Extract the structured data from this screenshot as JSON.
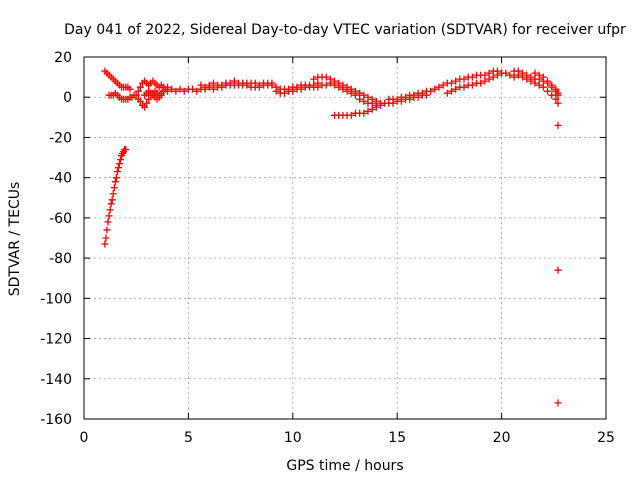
{
  "chart_data": {
    "type": "scatter",
    "title": "Day 041 of 2022, Sidereal Day-to-day VTEC variation (SDTVAR) for receiver ufpr",
    "xlabel": "GPS time / hours",
    "ylabel": "SDTVAR / TECUs",
    "xlim": [
      0,
      25
    ],
    "ylim": [
      -160,
      20
    ],
    "xticks": [
      0,
      5,
      10,
      15,
      20,
      25
    ],
    "yticks": [
      -160,
      -140,
      -120,
      -100,
      -80,
      -60,
      -40,
      -20,
      0,
      20
    ],
    "grid": true,
    "marker": "plus",
    "color": "#ff0000",
    "series": [
      {
        "values": [
          [
            1.0,
            -73
          ],
          [
            1.05,
            -70
          ],
          [
            1.1,
            -66
          ],
          [
            1.15,
            -62
          ],
          [
            1.2,
            -59
          ],
          [
            1.25,
            -56
          ],
          [
            1.3,
            -53
          ],
          [
            1.35,
            -51
          ],
          [
            1.4,
            -48
          ],
          [
            1.45,
            -45
          ],
          [
            1.5,
            -42
          ],
          [
            1.55,
            -40
          ],
          [
            1.6,
            -37
          ],
          [
            1.65,
            -35
          ],
          [
            1.7,
            -33
          ],
          [
            1.75,
            -31
          ],
          [
            1.8,
            -29
          ],
          [
            1.85,
            -28
          ],
          [
            1.9,
            -27
          ],
          [
            1.95,
            -26
          ],
          [
            2.0,
            -26
          ],
          [
            1.0,
            13
          ],
          [
            1.1,
            12
          ],
          [
            1.2,
            11
          ],
          [
            1.3,
            10
          ],
          [
            1.4,
            9
          ],
          [
            1.5,
            8
          ],
          [
            1.6,
            7
          ],
          [
            1.7,
            6
          ],
          [
            1.8,
            5
          ],
          [
            1.9,
            5
          ],
          [
            2.0,
            5
          ],
          [
            2.1,
            5
          ],
          [
            2.2,
            4
          ],
          [
            1.2,
            1
          ],
          [
            1.3,
            1
          ],
          [
            1.4,
            1
          ],
          [
            1.5,
            2
          ],
          [
            1.6,
            1
          ],
          [
            1.7,
            0
          ],
          [
            1.8,
            -1
          ],
          [
            1.9,
            -1
          ],
          [
            2.0,
            -1
          ],
          [
            2.1,
            -1
          ],
          [
            2.2,
            0
          ],
          [
            2.3,
            0
          ],
          [
            2.4,
            1
          ],
          [
            2.5,
            1
          ],
          [
            2.6,
            3
          ],
          [
            2.7,
            5
          ],
          [
            2.8,
            7
          ],
          [
            2.9,
            8
          ],
          [
            3.0,
            7
          ],
          [
            3.1,
            6
          ],
          [
            3.2,
            7
          ],
          [
            3.3,
            8
          ],
          [
            3.4,
            7
          ],
          [
            3.5,
            6
          ],
          [
            3.6,
            5
          ],
          [
            3.7,
            6
          ],
          [
            3.8,
            5
          ],
          [
            3.9,
            4
          ],
          [
            4.0,
            5
          ],
          [
            2.6,
            -1
          ],
          [
            2.7,
            -2
          ],
          [
            2.8,
            -4
          ],
          [
            2.9,
            -5
          ],
          [
            3.0,
            -3
          ],
          [
            3.1,
            -1
          ],
          [
            3.2,
            1
          ],
          [
            3.3,
            2
          ],
          [
            3.4,
            3
          ],
          [
            3.5,
            2
          ],
          [
            3.6,
            1
          ],
          [
            3.7,
            2
          ],
          [
            3.8,
            3
          ],
          [
            2.9,
            1
          ],
          [
            3.0,
            2
          ],
          [
            3.1,
            3
          ],
          [
            3.2,
            2
          ],
          [
            3.3,
            1
          ],
          [
            3.4,
            0
          ],
          [
            3.5,
            -1
          ],
          [
            3.6,
            0
          ],
          [
            3.7,
            1
          ],
          [
            4.0,
            3
          ],
          [
            4.2,
            4
          ],
          [
            4.4,
            3
          ],
          [
            4.6,
            4
          ],
          [
            4.8,
            3
          ],
          [
            5.0,
            4
          ],
          [
            5.2,
            4
          ],
          [
            5.4,
            3
          ],
          [
            5.6,
            4
          ],
          [
            5.8,
            4
          ],
          [
            6.0,
            5
          ],
          [
            6.2,
            4
          ],
          [
            6.4,
            5
          ],
          [
            6.6,
            5
          ],
          [
            6.8,
            6
          ],
          [
            7.0,
            6
          ],
          [
            7.2,
            6
          ],
          [
            7.4,
            6
          ],
          [
            7.6,
            6
          ],
          [
            7.8,
            6
          ],
          [
            8.0,
            5
          ],
          [
            8.2,
            5
          ],
          [
            8.4,
            5
          ],
          [
            8.6,
            6
          ],
          [
            8.8,
            6
          ],
          [
            9.0,
            6
          ],
          [
            5.6,
            6
          ],
          [
            5.8,
            5
          ],
          [
            6.0,
            6
          ],
          [
            6.2,
            7
          ],
          [
            6.4,
            6
          ],
          [
            6.6,
            6
          ],
          [
            6.8,
            7
          ],
          [
            7.0,
            7
          ],
          [
            7.2,
            8
          ],
          [
            7.4,
            7
          ],
          [
            7.6,
            7
          ],
          [
            7.8,
            7
          ],
          [
            8.0,
            7
          ],
          [
            8.2,
            7
          ],
          [
            8.4,
            6
          ],
          [
            8.6,
            7
          ],
          [
            8.8,
            7
          ],
          [
            9.0,
            7
          ],
          [
            9.2,
            3
          ],
          [
            9.4,
            2
          ],
          [
            9.6,
            2
          ],
          [
            9.8,
            3
          ],
          [
            10.0,
            3
          ],
          [
            10.2,
            4
          ],
          [
            10.4,
            4
          ],
          [
            10.6,
            5
          ],
          [
            10.8,
            5
          ],
          [
            11.0,
            5
          ],
          [
            11.2,
            5
          ],
          [
            11.4,
            6
          ],
          [
            11.6,
            6
          ],
          [
            9.2,
            5
          ],
          [
            9.4,
            4
          ],
          [
            9.6,
            4
          ],
          [
            9.8,
            4
          ],
          [
            10.0,
            5
          ],
          [
            10.2,
            5
          ],
          [
            10.4,
            6
          ],
          [
            10.6,
            6
          ],
          [
            10.8,
            6
          ],
          [
            11.0,
            6
          ],
          [
            11.2,
            7
          ],
          [
            11.0,
            9
          ],
          [
            11.2,
            10
          ],
          [
            11.4,
            10
          ],
          [
            11.6,
            10
          ],
          [
            11.8,
            9
          ],
          [
            12.0,
            8
          ],
          [
            12.2,
            7
          ],
          [
            12.4,
            6
          ],
          [
            12.6,
            5
          ],
          [
            12.8,
            4
          ],
          [
            13.0,
            3
          ],
          [
            13.2,
            2
          ],
          [
            13.4,
            1
          ],
          [
            13.6,
            0
          ],
          [
            13.8,
            -1
          ],
          [
            14.0,
            -2
          ],
          [
            14.2,
            -3
          ],
          [
            11.8,
            7
          ],
          [
            12.0,
            6
          ],
          [
            12.2,
            5
          ],
          [
            12.4,
            4
          ],
          [
            12.6,
            3
          ],
          [
            12.8,
            2
          ],
          [
            13.0,
            1
          ],
          [
            13.2,
            -1
          ],
          [
            13.4,
            -2
          ],
          [
            13.6,
            -3
          ],
          [
            13.8,
            -3
          ],
          [
            14.0,
            -4
          ],
          [
            12.0,
            -9
          ],
          [
            12.2,
            -9
          ],
          [
            12.4,
            -9
          ],
          [
            12.6,
            -9
          ],
          [
            12.8,
            -9
          ],
          [
            13.0,
            -8
          ],
          [
            13.2,
            -8
          ],
          [
            13.4,
            -8
          ],
          [
            13.6,
            -7
          ],
          [
            13.8,
            -6
          ],
          [
            14.0,
            -5
          ],
          [
            14.2,
            -4
          ],
          [
            14.4,
            -3
          ],
          [
            14.6,
            -3
          ],
          [
            14.8,
            -3
          ],
          [
            15.0,
            -2
          ],
          [
            15.2,
            -2
          ],
          [
            15.4,
            -1
          ],
          [
            15.6,
            -1
          ],
          [
            15.8,
            0
          ],
          [
            16.0,
            0
          ],
          [
            16.2,
            1
          ],
          [
            16.4,
            1
          ],
          [
            14.6,
            -1
          ],
          [
            14.8,
            -1
          ],
          [
            15.0,
            -1
          ],
          [
            15.2,
            0
          ],
          [
            15.4,
            0
          ],
          [
            15.6,
            1
          ],
          [
            15.8,
            1
          ],
          [
            16.0,
            2
          ],
          [
            16.2,
            2
          ],
          [
            16.4,
            3
          ],
          [
            16.6,
            3
          ],
          [
            16.8,
            4
          ],
          [
            17.0,
            5
          ],
          [
            17.2,
            6
          ],
          [
            17.4,
            7
          ],
          [
            17.6,
            7
          ],
          [
            17.8,
            8
          ],
          [
            18.0,
            9
          ],
          [
            18.2,
            9
          ],
          [
            18.4,
            10
          ],
          [
            18.6,
            10
          ],
          [
            18.8,
            11
          ],
          [
            19.0,
            11
          ],
          [
            17.4,
            2
          ],
          [
            17.6,
            3
          ],
          [
            17.8,
            4
          ],
          [
            18.0,
            5
          ],
          [
            18.2,
            5
          ],
          [
            18.4,
            6
          ],
          [
            18.6,
            6
          ],
          [
            18.8,
            7
          ],
          [
            19.0,
            7
          ],
          [
            19.2,
            8
          ],
          [
            19.4,
            9
          ],
          [
            19.6,
            10
          ],
          [
            19.8,
            11
          ],
          [
            20.0,
            12
          ],
          [
            19.2,
            11
          ],
          [
            19.4,
            12
          ],
          [
            19.6,
            13
          ],
          [
            19.8,
            13
          ],
          [
            20.0,
            12
          ],
          [
            20.2,
            12
          ],
          [
            20.4,
            11
          ],
          [
            20.6,
            10
          ],
          [
            20.6,
            13
          ],
          [
            20.8,
            13
          ],
          [
            21.0,
            12
          ],
          [
            21.2,
            11
          ],
          [
            21.4,
            10
          ],
          [
            21.6,
            9
          ],
          [
            21.8,
            9
          ],
          [
            22.0,
            8
          ],
          [
            22.2,
            7
          ],
          [
            22.4,
            5
          ],
          [
            22.6,
            3
          ],
          [
            22.7,
            1
          ],
          [
            20.8,
            11
          ],
          [
            21.0,
            10
          ],
          [
            21.2,
            9
          ],
          [
            21.4,
            8
          ],
          [
            21.6,
            7
          ],
          [
            21.8,
            6
          ],
          [
            22.0,
            5
          ],
          [
            22.2,
            3
          ],
          [
            22.4,
            1
          ],
          [
            22.6,
            -1
          ],
          [
            22.7,
            -3
          ],
          [
            21.6,
            12
          ],
          [
            21.8,
            11
          ],
          [
            22.0,
            10
          ],
          [
            22.2,
            8
          ],
          [
            22.4,
            6
          ],
          [
            22.6,
            4
          ],
          [
            22.7,
            2
          ],
          [
            22.7,
            -14
          ],
          [
            22.7,
            -86
          ],
          [
            22.7,
            -152
          ]
        ]
      }
    ]
  }
}
